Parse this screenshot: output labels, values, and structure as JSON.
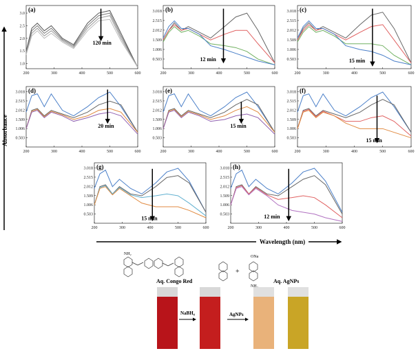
{
  "chart_data": [
    {
      "type": "line",
      "title": "(a)",
      "annotation": "120 min",
      "x": [
        200,
        220,
        240,
        265,
        290,
        330,
        370,
        420,
        460,
        500,
        540,
        600
      ],
      "xlim": [
        200,
        600
      ],
      "xticks": [
        200,
        300,
        400,
        500,
        600
      ],
      "ylim": [
        0.8,
        3.3
      ],
      "yticks": [
        {
          "value": 1,
          "label": "1.0"
        },
        {
          "value": 1.5,
          "label": "1.5"
        },
        {
          "value": 2,
          "label": "2.0"
        },
        {
          "value": 2.5,
          "label": "2.5"
        },
        {
          "value": 3,
          "label": "3.0"
        }
      ],
      "series": [
        {
          "color": "#555555",
          "values": [
            1.5,
            2.4,
            2.6,
            2.3,
            2.5,
            2.0,
            1.75,
            2.6,
            3.0,
            3.1,
            2.2,
            0.85
          ]
        },
        {
          "color": "#777777",
          "values": [
            1.45,
            2.3,
            2.5,
            2.2,
            2.4,
            1.95,
            1.7,
            2.5,
            2.9,
            3.0,
            2.1,
            0.85
          ]
        },
        {
          "color": "#999999",
          "values": [
            1.4,
            2.2,
            2.4,
            2.1,
            2.3,
            1.9,
            1.65,
            2.4,
            2.8,
            2.9,
            2.0,
            0.85
          ]
        },
        {
          "color": "#bbbbbb",
          "values": [
            1.35,
            2.1,
            2.3,
            2.0,
            2.2,
            1.85,
            1.6,
            2.3,
            2.7,
            2.75,
            1.9,
            0.85
          ]
        }
      ]
    },
    {
      "type": "line",
      "title": "(b)",
      "annotation": "12 min",
      "x": [
        200,
        220,
        240,
        265,
        290,
        330,
        370,
        420,
        460,
        500,
        540,
        600
      ],
      "xlim": [
        200,
        600
      ],
      "xticks": [
        200,
        300,
        400,
        500,
        600
      ],
      "ylim": [
        0,
        3.3
      ],
      "yticks": [
        0.503,
        1.006,
        1.509,
        2.012,
        2.515,
        3.018
      ],
      "series": [
        {
          "color": "#666666",
          "values": [
            1.5,
            2.0,
            2.4,
            2.0,
            2.2,
            1.9,
            1.6,
            2.2,
            2.7,
            2.9,
            2.0,
            0.3
          ]
        },
        {
          "color": "#e06060",
          "values": [
            1.5,
            2.0,
            2.3,
            2.0,
            2.1,
            1.8,
            1.5,
            1.8,
            2.0,
            2.0,
            1.3,
            0.3
          ]
        },
        {
          "color": "#70b060",
          "values": [
            1.4,
            1.9,
            2.2,
            1.9,
            2.0,
            1.7,
            1.3,
            1.2,
            1.1,
            0.9,
            0.5,
            0.2
          ]
        },
        {
          "color": "#4a7fc8",
          "values": [
            1.6,
            2.2,
            2.5,
            2.1,
            2.1,
            1.8,
            1.2,
            1.0,
            0.8,
            0.6,
            0.4,
            0.2
          ]
        }
      ]
    },
    {
      "type": "line",
      "title": "(c)",
      "annotation": "15 min",
      "x": [
        200,
        220,
        240,
        265,
        290,
        330,
        370,
        420,
        460,
        500,
        540,
        600
      ],
      "xlim": [
        200,
        600
      ],
      "xticks": [
        200,
        300,
        400,
        500,
        600
      ],
      "ylim": [
        0,
        3.3
      ],
      "yticks": [
        0.503,
        1.006,
        1.509,
        2.012,
        2.515,
        3.018
      ],
      "series": [
        {
          "color": "#666666",
          "values": [
            1.5,
            2.1,
            2.4,
            2.0,
            2.2,
            1.9,
            1.6,
            2.3,
            2.8,
            2.95,
            2.1,
            0.3
          ]
        },
        {
          "color": "#e06060",
          "values": [
            1.5,
            2.0,
            2.3,
            2.0,
            2.1,
            1.8,
            1.5,
            1.9,
            2.2,
            2.3,
            1.5,
            0.3
          ]
        },
        {
          "color": "#70b060",
          "values": [
            1.4,
            1.9,
            2.2,
            1.9,
            2.0,
            1.7,
            1.3,
            1.3,
            1.3,
            1.2,
            0.7,
            0.2
          ]
        },
        {
          "color": "#4a7fc8",
          "values": [
            1.6,
            2.2,
            2.5,
            2.1,
            2.1,
            1.8,
            1.2,
            1.0,
            0.9,
            0.7,
            0.4,
            0.2
          ]
        }
      ]
    },
    {
      "type": "line",
      "title": "(d)",
      "annotation": "20 min",
      "x": [
        200,
        220,
        240,
        265,
        290,
        330,
        370,
        420,
        460,
        500,
        540,
        600
      ],
      "xlim": [
        200,
        600
      ],
      "xticks": [
        200,
        300,
        400,
        500,
        600
      ],
      "ylim": [
        0,
        3.3
      ],
      "yticks": [
        0.503,
        1.006,
        1.509,
        2.012,
        2.515,
        3.018
      ],
      "series": [
        {
          "color": "#4a7fc8",
          "values": [
            1.9,
            2.8,
            2.9,
            2.2,
            2.9,
            2.0,
            1.7,
            2.2,
            2.7,
            3.0,
            2.2,
            0.8
          ]
        },
        {
          "color": "#666666",
          "values": [
            1.0,
            2.0,
            2.1,
            1.7,
            2.0,
            1.8,
            1.6,
            1.9,
            2.3,
            2.5,
            2.3,
            0.8
          ]
        },
        {
          "color": "#e08a40",
          "values": [
            1.0,
            1.95,
            2.05,
            1.65,
            1.95,
            1.75,
            1.5,
            1.7,
            2.0,
            2.1,
            1.9,
            0.8
          ]
        },
        {
          "color": "#9060b0",
          "values": [
            1.0,
            1.9,
            2.0,
            1.6,
            1.9,
            1.7,
            1.4,
            1.6,
            1.8,
            1.9,
            1.7,
            0.7
          ]
        }
      ]
    },
    {
      "type": "line",
      "title": "(e)",
      "annotation": "15 min",
      "x": [
        200,
        220,
        240,
        265,
        290,
        330,
        370,
        420,
        460,
        500,
        540,
        600
      ],
      "xlim": [
        200,
        600
      ],
      "xticks": [
        200,
        300,
        400,
        500,
        600
      ],
      "ylim": [
        0,
        3.3
      ],
      "yticks": [
        0.503,
        1.006,
        1.509,
        2.012,
        2.515,
        3.018
      ],
      "series": [
        {
          "color": "#4a7fc8",
          "values": [
            1.9,
            2.8,
            2.9,
            2.2,
            2.9,
            2.0,
            1.7,
            2.2,
            2.7,
            3.0,
            2.2,
            0.8
          ]
        },
        {
          "color": "#666666",
          "values": [
            1.0,
            2.0,
            2.1,
            1.7,
            2.0,
            1.8,
            1.6,
            1.9,
            2.3,
            2.6,
            2.3,
            0.8
          ]
        },
        {
          "color": "#e08a40",
          "values": [
            1.0,
            1.95,
            2.05,
            1.65,
            1.95,
            1.75,
            1.5,
            1.7,
            2.0,
            2.2,
            1.9,
            0.8
          ]
        },
        {
          "color": "#9060b0",
          "values": [
            1.0,
            1.9,
            2.0,
            1.6,
            1.9,
            1.7,
            1.4,
            1.5,
            1.7,
            1.8,
            1.6,
            0.7
          ]
        }
      ]
    },
    {
      "type": "line",
      "title": "(f)",
      "annotation": "15 min",
      "x": [
        200,
        220,
        240,
        265,
        290,
        330,
        370,
        420,
        460,
        500,
        540,
        600
      ],
      "xlim": [
        200,
        600
      ],
      "xticks": [
        200,
        300,
        400,
        500,
        600
      ],
      "ylim": [
        0,
        3.3
      ],
      "yticks": [
        0.503,
        1.006,
        1.509,
        2.012,
        2.515,
        3.018
      ],
      "series": [
        {
          "color": "#4a7fc8",
          "values": [
            1.9,
            2.8,
            2.9,
            2.2,
            2.9,
            2.0,
            1.7,
            2.2,
            2.7,
            3.0,
            2.2,
            0.8
          ]
        },
        {
          "color": "#666666",
          "values": [
            1.0,
            2.0,
            2.1,
            1.7,
            2.0,
            1.8,
            1.6,
            1.9,
            2.3,
            2.6,
            2.3,
            0.8
          ]
        },
        {
          "color": "#e06060",
          "values": [
            1.0,
            1.95,
            2.05,
            1.65,
            1.95,
            1.7,
            1.4,
            1.4,
            1.6,
            1.7,
            1.4,
            0.6
          ]
        },
        {
          "color": "#e08a40",
          "values": [
            1.0,
            1.9,
            2.0,
            1.6,
            1.9,
            1.7,
            1.3,
            1.0,
            1.0,
            1.0,
            0.8,
            0.5
          ]
        }
      ]
    },
    {
      "type": "line",
      "title": "(g)",
      "annotation": "15 min",
      "x": [
        200,
        220,
        240,
        265,
        290,
        330,
        370,
        420,
        460,
        500,
        540,
        600
      ],
      "xlim": [
        200,
        600
      ],
      "xticks": [
        200,
        300,
        400,
        500,
        600
      ],
      "ylim": [
        0,
        3.3
      ],
      "yticks": [
        0.503,
        1.006,
        1.509,
        2.012,
        2.515,
        3.018
      ],
      "series": [
        {
          "color": "#4a7fc8",
          "values": [
            1.9,
            2.7,
            2.9,
            2.0,
            2.4,
            1.9,
            1.6,
            2.2,
            2.8,
            3.0,
            2.3,
            0.6
          ]
        },
        {
          "color": "#666666",
          "values": [
            1.0,
            2.0,
            2.1,
            1.6,
            2.0,
            1.6,
            1.5,
            2.0,
            2.5,
            2.6,
            2.2,
            0.6
          ]
        },
        {
          "color": "#60b0d0",
          "values": [
            1.0,
            1.95,
            2.05,
            1.6,
            1.95,
            1.55,
            1.4,
            1.5,
            1.6,
            1.5,
            1.1,
            0.4
          ]
        },
        {
          "color": "#e08a40",
          "values": [
            1.0,
            1.9,
            2.0,
            1.55,
            1.9,
            1.5,
            1.1,
            0.9,
            0.9,
            0.9,
            0.7,
            0.3
          ]
        }
      ]
    },
    {
      "type": "line",
      "title": "(h)",
      "annotation": "12 min",
      "x": [
        200,
        220,
        240,
        265,
        290,
        330,
        370,
        420,
        460,
        500,
        540,
        600
      ],
      "xlim": [
        200,
        600
      ],
      "xticks": [
        200,
        300,
        400,
        500,
        600
      ],
      "ylim": [
        0,
        3.3
      ],
      "yticks": [
        0.503,
        1.006,
        1.509,
        2.012,
        2.515,
        3.018
      ],
      "series": [
        {
          "color": "#4a7fc8",
          "values": [
            1.9,
            2.7,
            2.9,
            2.0,
            2.4,
            1.9,
            1.6,
            2.2,
            2.8,
            3.0,
            2.3,
            0.6
          ]
        },
        {
          "color": "#666666",
          "values": [
            1.0,
            2.0,
            2.1,
            1.6,
            2.0,
            1.6,
            1.5,
            2.0,
            2.4,
            2.6,
            2.1,
            0.5
          ]
        },
        {
          "color": "#e06060",
          "values": [
            1.0,
            1.95,
            2.05,
            1.6,
            1.95,
            1.55,
            1.3,
            1.4,
            1.5,
            1.4,
            1.0,
            0.3
          ]
        },
        {
          "color": "#b070c0",
          "values": [
            1.0,
            1.9,
            2.0,
            1.55,
            1.9,
            1.5,
            1.0,
            0.7,
            0.6,
            0.5,
            0.3,
            0.1
          ]
        }
      ]
    }
  ],
  "axis_labels": {
    "y": "Absorbance",
    "x": "Wavelength (nm)"
  },
  "scheme": {
    "congo_red": "Aq. Congo Red",
    "reagent": "NaBH₄",
    "catalyst": "AgNPs",
    "product": "Aq. AgNPs",
    "groups": [
      "NH₂",
      "ONa",
      "NH₂"
    ]
  }
}
